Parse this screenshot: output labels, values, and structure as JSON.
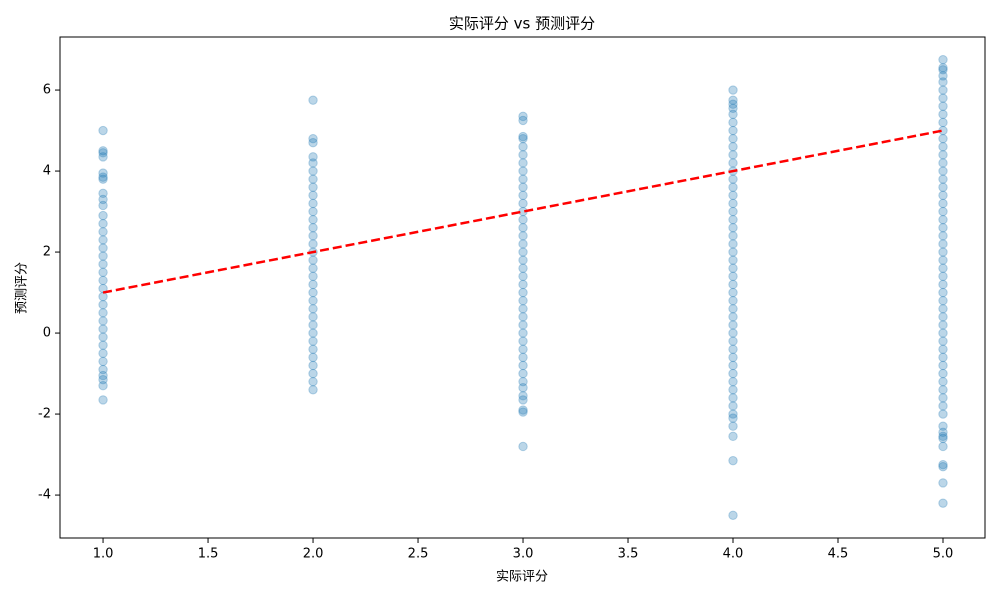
{
  "chart_data": {
    "type": "scatter",
    "title": "实际评分 vs 预测评分",
    "xlabel": "实际评分",
    "ylabel": "预测评分",
    "color": "#1f77b4",
    "alpha": 0.3,
    "xlim": [
      0.795,
      5.2
    ],
    "ylim": [
      -5.06,
      7.31
    ],
    "xticks": [
      {
        "value": 1,
        "label": "1.0"
      },
      {
        "value": 1.5,
        "label": "1.5"
      },
      {
        "value": 2,
        "label": "2.0"
      },
      {
        "value": 2.5,
        "label": "2.5"
      },
      {
        "value": 3,
        "label": "3.0"
      },
      {
        "value": 3.5,
        "label": "3.5"
      },
      {
        "value": 4,
        "label": "4.0"
      },
      {
        "value": 4.5,
        "label": "4.5"
      },
      {
        "value": 5,
        "label": "5.0"
      }
    ],
    "yticks": [
      -4,
      -2,
      0,
      2,
      4,
      6
    ],
    "grid": false,
    "reference_line": {
      "x": [
        1,
        5
      ],
      "y": [
        1,
        5
      ],
      "color": "#ff0000"
    },
    "points": [
      [
        1,
        -0.9
      ],
      [
        1,
        -0.7
      ],
      [
        1,
        -0.5
      ],
      [
        1,
        -0.3
      ],
      [
        1,
        -0.1
      ],
      [
        1,
        0.1
      ],
      [
        1,
        0.3
      ],
      [
        1,
        0.5
      ],
      [
        1,
        0.7
      ],
      [
        1,
        0.9
      ],
      [
        1,
        1.1
      ],
      [
        1,
        1.3
      ],
      [
        1,
        1.5
      ],
      [
        1,
        1.7
      ],
      [
        1,
        1.9
      ],
      [
        1,
        2.1
      ],
      [
        1,
        2.3
      ],
      [
        1,
        2.5
      ],
      [
        1,
        2.7
      ],
      [
        1,
        2.9
      ],
      [
        1,
        3.15
      ],
      [
        1,
        3.3
      ],
      [
        1,
        3.45
      ],
      [
        1,
        3.8
      ],
      [
        1,
        3.85
      ],
      [
        1,
        3.95
      ],
      [
        1,
        4.35
      ],
      [
        1,
        4.45
      ],
      [
        1,
        4.5
      ],
      [
        1,
        5.0
      ],
      [
        1,
        -1.05
      ],
      [
        1,
        -1.15
      ],
      [
        1,
        -1.3
      ],
      [
        1,
        -1.65
      ],
      [
        2,
        -1.2
      ],
      [
        2,
        -1
      ],
      [
        2,
        -0.8
      ],
      [
        2,
        -0.6
      ],
      [
        2,
        -0.4
      ],
      [
        2,
        -0.2
      ],
      [
        2,
        0
      ],
      [
        2,
        0.2
      ],
      [
        2,
        0.4
      ],
      [
        2,
        0.6
      ],
      [
        2,
        0.8
      ],
      [
        2,
        1
      ],
      [
        2,
        1.2
      ],
      [
        2,
        1.4
      ],
      [
        2,
        1.6
      ],
      [
        2,
        1.8
      ],
      [
        2,
        2
      ],
      [
        2,
        2.2
      ],
      [
        2,
        2.4
      ],
      [
        2,
        2.6
      ],
      [
        2,
        2.8
      ],
      [
        2,
        3
      ],
      [
        2,
        3.2
      ],
      [
        2,
        3.4
      ],
      [
        2,
        3.6
      ],
      [
        2,
        3.8
      ],
      [
        2,
        4
      ],
      [
        2,
        4.2
      ],
      [
        2,
        4.35
      ],
      [
        2,
        4.7
      ],
      [
        2,
        4.8
      ],
      [
        2,
        5.75
      ],
      [
        2,
        -1.4
      ],
      [
        3,
        -1
      ],
      [
        3,
        -0.8
      ],
      [
        3,
        -0.6
      ],
      [
        3,
        -0.4
      ],
      [
        3,
        -0.2
      ],
      [
        3,
        0
      ],
      [
        3,
        0.2
      ],
      [
        3,
        0.4
      ],
      [
        3,
        0.6
      ],
      [
        3,
        0.8
      ],
      [
        3,
        1
      ],
      [
        3,
        1.2
      ],
      [
        3,
        1.4
      ],
      [
        3,
        1.6
      ],
      [
        3,
        1.8
      ],
      [
        3,
        2
      ],
      [
        3,
        2.2
      ],
      [
        3,
        2.4
      ],
      [
        3,
        2.6
      ],
      [
        3,
        2.8
      ],
      [
        3,
        3
      ],
      [
        3,
        3.2
      ],
      [
        3,
        3.4
      ],
      [
        3,
        3.6
      ],
      [
        3,
        3.8
      ],
      [
        3,
        4
      ],
      [
        3,
        4.2
      ],
      [
        3,
        4.4
      ],
      [
        3,
        4.6
      ],
      [
        3,
        4.8
      ],
      [
        3,
        4.85
      ],
      [
        3,
        5.25
      ],
      [
        3,
        5.35
      ],
      [
        3,
        -1.2
      ],
      [
        3,
        -1.35
      ],
      [
        3,
        -1.55
      ],
      [
        3,
        -1.65
      ],
      [
        3,
        -1.9
      ],
      [
        3,
        -1.95
      ],
      [
        3,
        -2.8
      ],
      [
        4,
        -1.8
      ],
      [
        4,
        -1.6
      ],
      [
        4,
        -1.4
      ],
      [
        4,
        -1.2
      ],
      [
        4,
        -1
      ],
      [
        4,
        -0.8
      ],
      [
        4,
        -0.6
      ],
      [
        4,
        -0.4
      ],
      [
        4,
        -0.2
      ],
      [
        4,
        0
      ],
      [
        4,
        0.2
      ],
      [
        4,
        0.4
      ],
      [
        4,
        0.6
      ],
      [
        4,
        0.8
      ],
      [
        4,
        1
      ],
      [
        4,
        1.2
      ],
      [
        4,
        1.4
      ],
      [
        4,
        1.6
      ],
      [
        4,
        1.8
      ],
      [
        4,
        2
      ],
      [
        4,
        2.2
      ],
      [
        4,
        2.4
      ],
      [
        4,
        2.6
      ],
      [
        4,
        2.8
      ],
      [
        4,
        3
      ],
      [
        4,
        3.2
      ],
      [
        4,
        3.4
      ],
      [
        4,
        3.6
      ],
      [
        4,
        3.8
      ],
      [
        4,
        4
      ],
      [
        4,
        4.2
      ],
      [
        4,
        4.4
      ],
      [
        4,
        4.6
      ],
      [
        4,
        4.8
      ],
      [
        4,
        5
      ],
      [
        4,
        5.2
      ],
      [
        4,
        5.4
      ],
      [
        4,
        5.55
      ],
      [
        4,
        5.65
      ],
      [
        4,
        5.75
      ],
      [
        4,
        6
      ],
      [
        4,
        -2
      ],
      [
        4,
        -2.1
      ],
      [
        4,
        -2.3
      ],
      [
        4,
        -2.55
      ],
      [
        4,
        -3.15
      ],
      [
        4,
        -4.5
      ],
      [
        5,
        -1.8
      ],
      [
        5,
        -1.6
      ],
      [
        5,
        -1.4
      ],
      [
        5,
        -1.2
      ],
      [
        5,
        -1
      ],
      [
        5,
        -0.8
      ],
      [
        5,
        -0.6
      ],
      [
        5,
        -0.4
      ],
      [
        5,
        -0.2
      ],
      [
        5,
        0
      ],
      [
        5,
        0.2
      ],
      [
        5,
        0.4
      ],
      [
        5,
        0.6
      ],
      [
        5,
        0.8
      ],
      [
        5,
        1
      ],
      [
        5,
        1.2
      ],
      [
        5,
        1.4
      ],
      [
        5,
        1.6
      ],
      [
        5,
        1.8
      ],
      [
        5,
        2
      ],
      [
        5,
        2.2
      ],
      [
        5,
        2.4
      ],
      [
        5,
        2.6
      ],
      [
        5,
        2.8
      ],
      [
        5,
        3
      ],
      [
        5,
        3.2
      ],
      [
        5,
        3.4
      ],
      [
        5,
        3.6
      ],
      [
        5,
        3.8
      ],
      [
        5,
        4
      ],
      [
        5,
        4.2
      ],
      [
        5,
        4.4
      ],
      [
        5,
        4.6
      ],
      [
        5,
        4.8
      ],
      [
        5,
        5
      ],
      [
        5,
        5.2
      ],
      [
        5,
        5.4
      ],
      [
        5,
        5.6
      ],
      [
        5,
        5.8
      ],
      [
        5,
        6
      ],
      [
        5,
        6.2
      ],
      [
        5,
        6.35
      ],
      [
        5,
        6.5
      ],
      [
        5,
        6.55
      ],
      [
        5,
        6.75
      ],
      [
        5,
        -2
      ],
      [
        5,
        -2.3
      ],
      [
        5,
        -2.45
      ],
      [
        5,
        -2.55
      ],
      [
        5,
        -2.6
      ],
      [
        5,
        -2.8
      ],
      [
        5,
        -3.25
      ],
      [
        5,
        -3.3
      ],
      [
        5,
        -3.7
      ],
      [
        5,
        -4.2
      ]
    ]
  }
}
